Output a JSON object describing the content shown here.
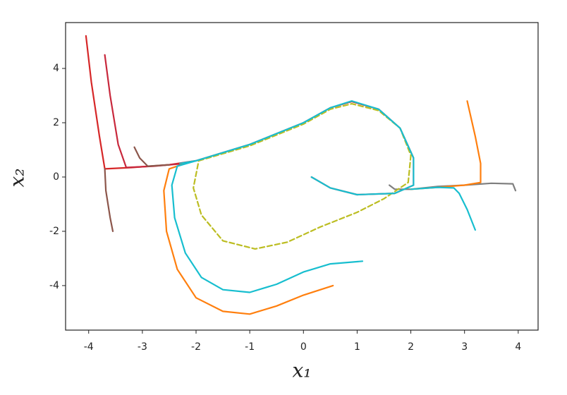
{
  "chart_data": {
    "type": "line",
    "xlabel": "x₁",
    "ylabel": "x₂",
    "xlim": [
      -4.43,
      4.37
    ],
    "ylim": [
      -5.64,
      5.69
    ],
    "xticks": [
      -4,
      -3,
      -2,
      -1,
      0,
      1,
      2,
      3,
      4
    ],
    "yticks": [
      -4,
      -2,
      0,
      2,
      4
    ],
    "series": [
      {
        "color": "#d62728",
        "x": [
          -4.05,
          -3.95,
          -3.8,
          -3.7,
          -3.2,
          -2.5,
          -2,
          -1,
          0,
          0.5,
          0.9,
          1.4,
          1.8,
          2.05,
          2.05,
          1.7,
          1,
          0.5,
          0.15
        ],
        "y": [
          5.2,
          3.5,
          1.5,
          0.3,
          0.35,
          0.45,
          0.6,
          1.2,
          2,
          2.55,
          2.78,
          2.5,
          1.8,
          0.7,
          -0.3,
          -0.6,
          -0.65,
          -0.4,
          0
        ]
      },
      {
        "color": "#c8283c",
        "x": [
          -3.7,
          -3.6,
          -3.45,
          -3.3,
          -2.8,
          -2.2
        ],
        "y": [
          4.5,
          3,
          1.2,
          0.35,
          0.4,
          0.5
        ]
      },
      {
        "color": "#8c564b",
        "x": [
          -3.7,
          -3.68,
          -3.6,
          -3.55
        ],
        "y": [
          0.3,
          -0.5,
          -1.5,
          -2
        ]
      },
      {
        "color": "#8c564b",
        "x": [
          -3.15,
          -3.05,
          -2.9,
          -2.5
        ],
        "y": [
          1.1,
          0.7,
          0.4,
          0.45
        ]
      },
      {
        "color": "#7f7f7f",
        "x": [
          3.95,
          3.9,
          3.5,
          3,
          2.5,
          2,
          1.7,
          1.6
        ],
        "y": [
          -0.5,
          -0.25,
          -0.23,
          -0.3,
          -0.35,
          -0.45,
          -0.45,
          -0.3
        ]
      },
      {
        "color": "#ff7f0e",
        "x": [
          3.05,
          3.2,
          3.3,
          3.3,
          3.0,
          2.5,
          2
        ],
        "y": [
          2.8,
          1.5,
          0.5,
          -0.2,
          -0.3,
          -0.38,
          -0.45
        ]
      },
      {
        "color": "#ff7f0e",
        "x": [
          0.55,
          0,
          -0.5,
          -1,
          -1.5,
          -2,
          -2.35,
          -2.55,
          -2.6,
          -2.5,
          -2.2
        ],
        "y": [
          -4,
          -4.35,
          -4.75,
          -5.05,
          -4.95,
          -4.45,
          -3.4,
          -2,
          -0.5,
          0.3,
          0.5
        ]
      },
      {
        "color": "#17becf",
        "x": [
          1.1,
          0.5,
          0,
          -0.5,
          -1,
          -1.5,
          -1.9,
          -2.2,
          -2.4,
          -2.45,
          -2.35,
          -2
        ],
        "y": [
          -3.1,
          -3.2,
          -3.5,
          -3.95,
          -4.25,
          -4.15,
          -3.7,
          -2.8,
          -1.5,
          -0.3,
          0.4,
          0.6
        ]
      },
      {
        "color": "#17becf",
        "x": [
          3.2,
          3.05,
          2.9,
          2.8,
          2.5,
          2
        ],
        "y": [
          -1.95,
          -1.2,
          -0.6,
          -0.4,
          -0.38,
          -0.45
        ]
      },
      {
        "color": "#bcbd22",
        "dashed": true,
        "x": [
          -1.95,
          -1,
          0,
          0.5,
          0.9,
          1.4,
          1.8,
          2,
          1.95,
          1.5,
          1,
          0.3,
          -0.3,
          -0.9,
          -1.5,
          -1.9,
          -2.05,
          -1.95
        ],
        "y": [
          0.6,
          1.15,
          1.95,
          2.5,
          2.7,
          2.45,
          1.8,
          0.8,
          -0.2,
          -0.8,
          -1.3,
          -1.85,
          -2.4,
          -2.65,
          -2.35,
          -1.4,
          -0.4,
          0.6
        ]
      },
      {
        "color": "#17becf",
        "x": [
          -2.3,
          -2,
          -1,
          0,
          0.5,
          0.9,
          1.4,
          1.8,
          2.05,
          2.05,
          1.7,
          1,
          0.5,
          0.15
        ],
        "y": [
          0.5,
          0.6,
          1.2,
          2,
          2.55,
          2.8,
          2.5,
          1.8,
          0.7,
          -0.3,
          -0.6,
          -0.65,
          -0.4,
          0
        ]
      }
    ]
  }
}
